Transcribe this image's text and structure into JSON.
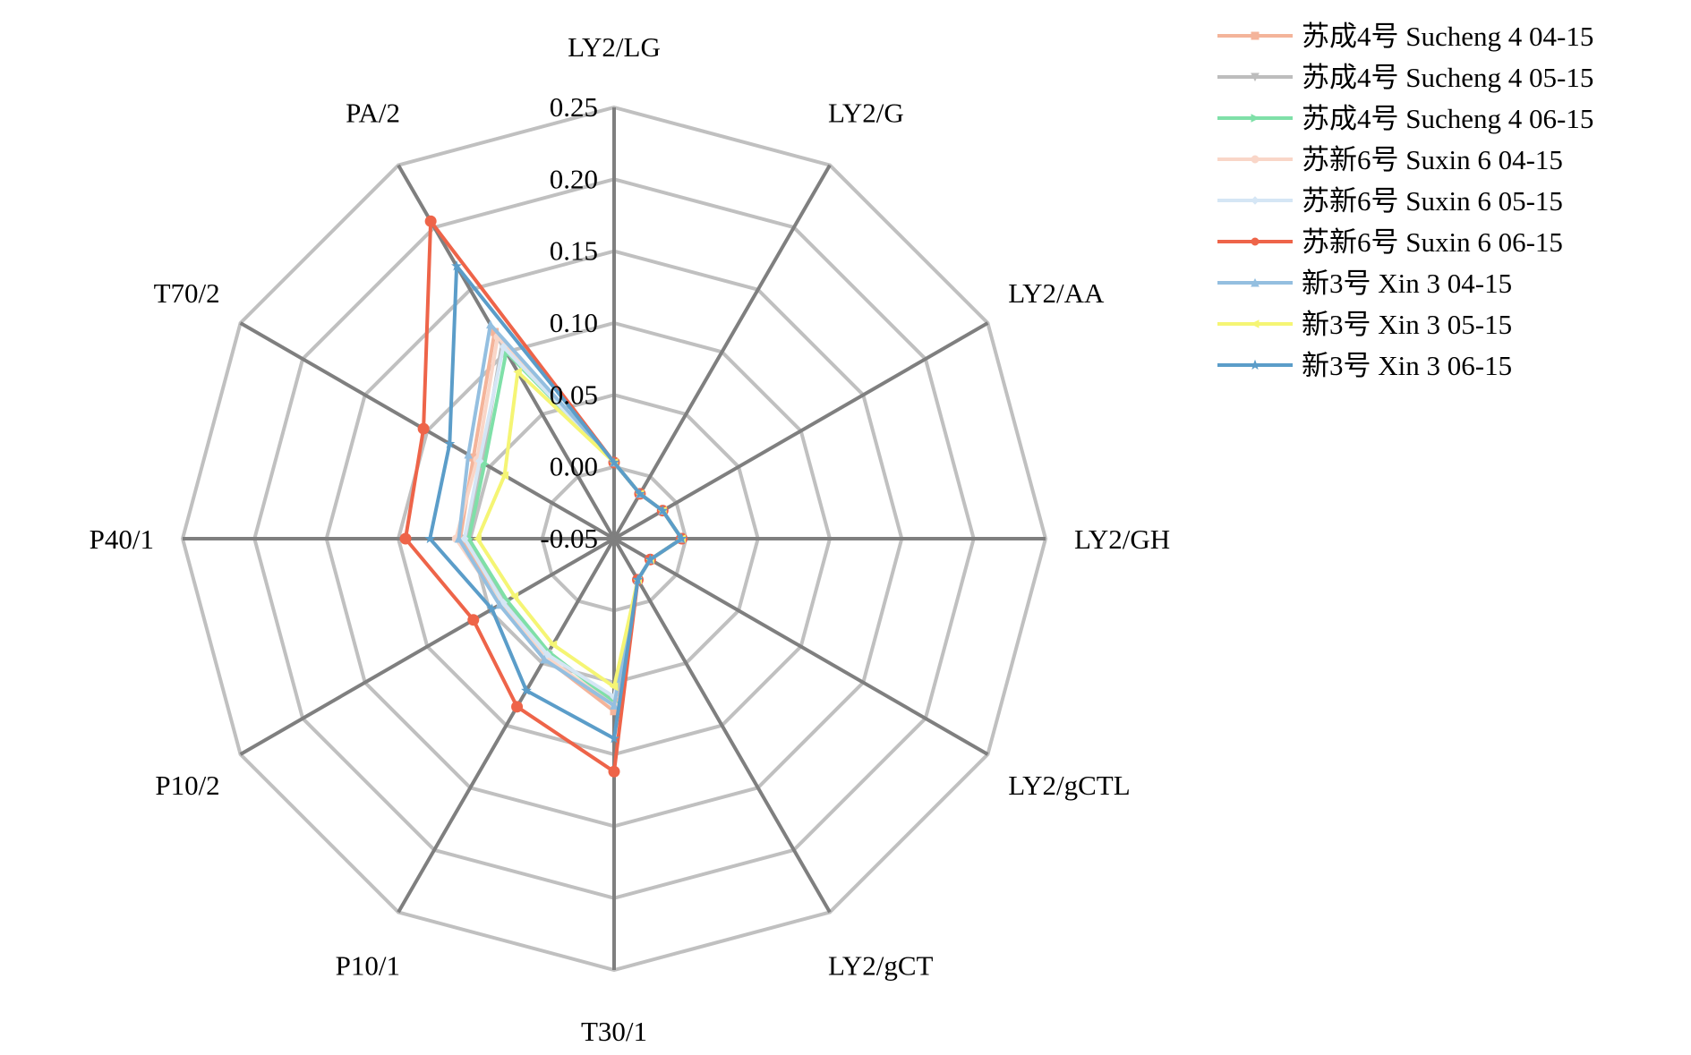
{
  "chart_data": {
    "type": "radar",
    "axes": [
      "LY2/LG",
      "LY2/G",
      "LY2/AA",
      "LY2/GH",
      "LY2/gCTL",
      "LY2/gCT",
      "T30/1",
      "P10/1",
      "P10/2",
      "P40/1",
      "T70/2",
      "PA/2"
    ],
    "rlim": [
      -0.05,
      0.25
    ],
    "ticks": [
      "-0.05",
      "0.00",
      "0.05",
      "0.10",
      "0.15",
      "0.20",
      "0.25"
    ],
    "tick_values": [
      -0.05,
      0.0,
      0.05,
      0.1,
      0.15,
      0.2,
      0.25
    ],
    "grid": true,
    "legend_position": "top-right",
    "series": [
      {
        "name": "苏成4号 Sucheng 4  04-15",
        "color": "#F4B49A",
        "marker": "square",
        "values": [
          0.003,
          -0.014,
          -0.011,
          -0.003,
          -0.021,
          -0.017,
          0.07,
          0.046,
          0.04,
          0.057,
          0.063,
          0.116
        ]
      },
      {
        "name": "苏成4号 Sucheng 4  05-15",
        "color": "#BDBDBD",
        "marker": "triangle-down",
        "values": [
          0.003,
          -0.014,
          -0.011,
          -0.003,
          -0.021,
          -0.017,
          0.062,
          0.042,
          0.038,
          0.053,
          0.056,
          0.106
        ]
      },
      {
        "name": "苏成4号 Sucheng 4  06-15",
        "color": "#7FE0A8",
        "marker": "triangle-right",
        "values": [
          0.003,
          -0.014,
          -0.011,
          -0.003,
          -0.021,
          -0.017,
          0.064,
          0.041,
          0.036,
          0.051,
          0.054,
          0.1
        ]
      },
      {
        "name": "苏新6号 Suxin 6  04-15",
        "color": "#F9D6C8",
        "marker": "circle",
        "values": [
          0.003,
          -0.014,
          -0.011,
          -0.003,
          -0.021,
          -0.017,
          0.066,
          0.045,
          0.041,
          0.06,
          0.06,
          0.112
        ]
      },
      {
        "name": "苏新6号 Suxin 6  05-15",
        "color": "#D5E6F5",
        "marker": "diamond",
        "values": [
          0.003,
          -0.014,
          -0.011,
          -0.003,
          -0.021,
          -0.017,
          0.06,
          0.043,
          0.039,
          0.054,
          0.058,
          0.104
        ]
      },
      {
        "name": "苏新6号 Suxin 6  06-15",
        "color": "#EE6449",
        "marker": "circle",
        "values": [
          0.003,
          -0.014,
          -0.011,
          -0.003,
          -0.021,
          -0.017,
          0.112,
          0.085,
          0.063,
          0.095,
          0.103,
          0.205
        ]
      },
      {
        "name": "新3号 Xin 3  04-15",
        "color": "#94BFE0",
        "marker": "triangle-up",
        "values": [
          0.003,
          -0.014,
          -0.011,
          -0.003,
          -0.021,
          -0.017,
          0.066,
          0.047,
          0.042,
          0.058,
          0.067,
          0.122
        ]
      },
      {
        "name": "新3号 Xin 3  05-15",
        "color": "#F5F574",
        "marker": "triangle-left",
        "values": [
          0.003,
          -0.014,
          -0.011,
          -0.003,
          -0.021,
          -0.017,
          0.053,
          0.035,
          0.03,
          0.045,
          0.038,
          0.084
        ]
      },
      {
        "name": "新3号 Xin 3  06-15",
        "color": "#5B9DC9",
        "marker": "star",
        "values": [
          0.003,
          -0.014,
          -0.011,
          -0.003,
          -0.021,
          -0.017,
          0.089,
          0.072,
          0.048,
          0.078,
          0.082,
          0.169
        ]
      }
    ]
  }
}
